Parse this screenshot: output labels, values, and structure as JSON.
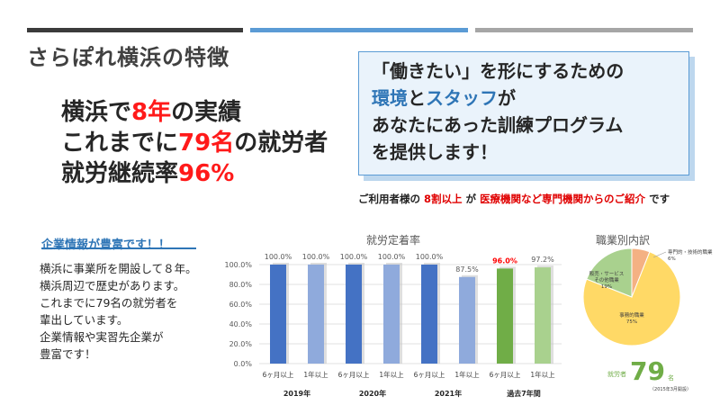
{
  "header": {
    "bars": [
      {
        "color": "#3b3b3b"
      },
      {
        "color": "#5b9bd5"
      },
      {
        "color": "#a6a6a6"
      }
    ],
    "title": "さらぽれ横浜の特徴"
  },
  "facts": {
    "line1": {
      "pre": "横浜で",
      "hl": "8年",
      "post": "の実績"
    },
    "line2": {
      "pre": "これまでに",
      "hl": "79名",
      "post": "の就労者"
    },
    "line3": {
      "pre": "就労継続率",
      "hl": "96%"
    }
  },
  "callout": {
    "line1": "「働きたい」を形にするための",
    "line2": {
      "a": "環境",
      "b": "と",
      "c": "スタッフ",
      "d": "が"
    },
    "line3": "あなたにあった訓練プログラム",
    "line4": "を提供します！"
  },
  "note": {
    "pre": "ご利用者様の",
    "hl1": "8割以上",
    "mid": "が",
    "hl2": "医療機関など専門機関からのご紹介",
    "post": "です"
  },
  "company": {
    "title": "企業情報が豊富です！！",
    "lines": [
      "横浜に事業所を開設して８年。",
      "横浜周辺で歴史があります。",
      "これまでに79名の就労者を",
      "輩出しています。",
      "企業情報や実習先企業が",
      "豊富です！"
    ]
  },
  "chart_data": [
    {
      "type": "bar",
      "title": "就労定着率",
      "categories": [
        "6ヶ月以上",
        "1年以上",
        "6ヶ月以上",
        "1年以上",
        "6ヶ月以上",
        "1年以上",
        "6ヶ月以上",
        "1年以上"
      ],
      "groups": [
        "2019年",
        "2020年",
        "2021年",
        "過去7年間"
      ],
      "values": [
        100.0,
        100.0,
        100.0,
        100.0,
        100.0,
        87.5,
        96.0,
        97.2
      ],
      "value_labels": [
        "100.0%",
        "100.0%",
        "100.0%",
        "100.0%",
        "100.0%",
        "87.5%",
        "96.0%",
        "97.2%"
      ],
      "colors": [
        "#4472c4",
        "#8faadc",
        "#4472c4",
        "#8faadc",
        "#4472c4",
        "#8faadc",
        "#70ad47",
        "#a9d18e"
      ],
      "label_colors": [
        "#595959",
        "#595959",
        "#595959",
        "#595959",
        "#595959",
        "#595959",
        "#ff0000",
        "#595959"
      ],
      "ylim": [
        0,
        100
      ],
      "yticks": [
        "0.0%",
        "20.0%",
        "40.0%",
        "60.0%",
        "80.0%",
        "100.0%"
      ]
    },
    {
      "type": "pie",
      "title": "職業別内訳",
      "slices": [
        {
          "label": "専門的・技術的職業",
          "pct_label": "6%",
          "value": 6,
          "color": "#f4b183"
        },
        {
          "label": "事務的職業",
          "pct_label": "75%",
          "value": 75,
          "color": "#ffd966"
        },
        {
          "label": "販売・サービス その他職業",
          "pct_label": "19%",
          "value": 19,
          "color": "#a9d18e"
        }
      ],
      "total_label": "就労者",
      "total_value": "79",
      "total_unit": "名",
      "date_note": "（2015年3月開設）"
    }
  ]
}
